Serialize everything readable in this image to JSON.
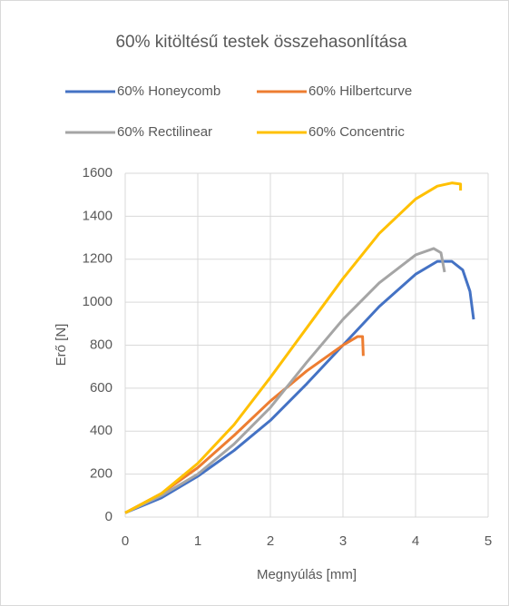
{
  "chart_data": {
    "type": "line",
    "title": "60%  kitöltésű testek összehasonlítása",
    "x_label": "Megnyúlás [mm]",
    "y_label": "Erő [N]",
    "xlim": [
      0,
      5
    ],
    "xticks": [
      0,
      1,
      2,
      3,
      4,
      5
    ],
    "ylim": [
      0,
      1600
    ],
    "yticks": [
      0,
      200,
      400,
      600,
      800,
      1000,
      1200,
      1400,
      1600
    ],
    "grid": true,
    "legend": "top",
    "series": [
      {
        "name": "60% Honeycomb",
        "color": "#4472c4",
        "x": [
          0,
          0.5,
          1,
          1.5,
          2,
          2.5,
          3,
          3.5,
          4,
          4.3,
          4.5,
          4.65,
          4.75,
          4.8
        ],
        "values": [
          20,
          90,
          190,
          310,
          450,
          620,
          800,
          980,
          1130,
          1190,
          1190,
          1150,
          1050,
          920
        ]
      },
      {
        "name": "60% Hilbertcurve",
        "color": "#ed7d31",
        "x": [
          0,
          0.5,
          1,
          1.5,
          2,
          2.5,
          3,
          3.2,
          3.27,
          3.28
        ],
        "values": [
          20,
          110,
          230,
          380,
          540,
          680,
          800,
          840,
          840,
          750
        ]
      },
      {
        "name": "60% Rectilinear",
        "color": "#a5a5a5",
        "x": [
          0,
          0.5,
          1,
          1.5,
          2,
          2.5,
          3,
          3.5,
          4,
          4.25,
          4.35,
          4.4
        ],
        "values": [
          20,
          100,
          200,
          340,
          510,
          720,
          920,
          1090,
          1220,
          1250,
          1230,
          1140
        ]
      },
      {
        "name": "60% Concentric",
        "color": "#ffc000",
        "x": [
          0,
          0.5,
          1,
          1.5,
          2,
          2.5,
          3,
          3.5,
          4,
          4.3,
          4.5,
          4.62,
          4.62
        ],
        "values": [
          20,
          110,
          250,
          430,
          650,
          880,
          1110,
          1320,
          1480,
          1540,
          1555,
          1550,
          1520
        ]
      }
    ]
  }
}
